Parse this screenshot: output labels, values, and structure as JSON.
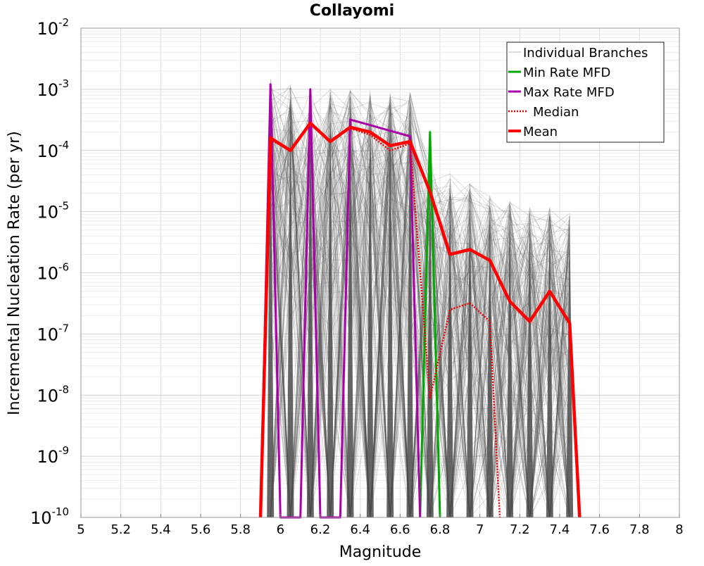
{
  "chart_data": {
    "type": "line",
    "title": "Collayomi",
    "xlabel": "Magnitude",
    "ylabel": "Incremental Nucleation Rate (per yr)",
    "xlim": [
      5,
      8
    ],
    "ylim": [
      1e-10,
      0.01
    ],
    "y_scale": "log",
    "grid": true,
    "legend_position": "top-right",
    "x_ticks": [
      "5",
      "5.2",
      "5.4",
      "5.6",
      "5.8",
      "6",
      "6.2",
      "6.4",
      "6.6",
      "6.8",
      "7",
      "7.2",
      "7.4",
      "7.6",
      "7.8",
      "8"
    ],
    "y_ticks": [
      {
        "base": "10",
        "exp": "-10"
      },
      {
        "base": "10",
        "exp": "-9"
      },
      {
        "base": "10",
        "exp": "-8"
      },
      {
        "base": "10",
        "exp": "-7"
      },
      {
        "base": "10",
        "exp": "-6"
      },
      {
        "base": "10",
        "exp": "-5"
      },
      {
        "base": "10",
        "exp": "-4"
      },
      {
        "base": "10",
        "exp": "-3"
      },
      {
        "base": "10",
        "exp": "-2"
      }
    ],
    "series": [
      {
        "name": "Individual Branches",
        "color": "#b8b8b8",
        "style": "thin",
        "note_visual": "dense bundle of many gray branch curves",
        "x": [
          5.95,
          6.05,
          6.15,
          6.25,
          6.35,
          6.45,
          6.55,
          6.65,
          6.75,
          6.85,
          6.95,
          7.05,
          7.15,
          7.25,
          7.35,
          7.45
        ],
        "band_low": [
          1e-10,
          1e-10,
          1e-10,
          1e-10,
          1e-10,
          1e-10,
          1e-10,
          1e-10,
          1e-10,
          1e-10,
          1e-10,
          1e-10,
          1e-10,
          1e-10,
          1e-10,
          1e-10
        ],
        "band_high": [
          0.0015,
          0.0012,
          0.0012,
          0.001,
          0.001,
          0.001,
          0.0009,
          0.0009,
          8e-05,
          5e-05,
          3e-05,
          2e-05,
          1.5e-05,
          1.2e-05,
          1.2e-05,
          1e-05
        ]
      },
      {
        "name": "Min Rate MFD",
        "color": "#00aa00",
        "style": "solid",
        "x": [
          6.7,
          6.75,
          6.8
        ],
        "values": [
          1e-10,
          0.0002,
          1e-10
        ]
      },
      {
        "name": "Max Rate MFD",
        "color": "#aa00aa",
        "style": "solid",
        "x": [
          5.9,
          5.95,
          6.0,
          6.1,
          6.15,
          6.2,
          6.3,
          6.35,
          6.45,
          6.55,
          6.65,
          6.7
        ],
        "values": [
          1e-10,
          0.0012,
          1e-10,
          1e-10,
          0.001,
          1e-10,
          1e-10,
          0.00032,
          0.00026,
          0.00021,
          0.00017,
          1e-10
        ]
      },
      {
        "name": "Median",
        "color": "#ee0000",
        "style": "dotted",
        "x": [
          5.9,
          5.95,
          6.05,
          6.15,
          6.25,
          6.35,
          6.45,
          6.55,
          6.65,
          6.75,
          6.85,
          6.95,
          7.05,
          7.1
        ],
        "values": [
          1e-10,
          0.00015,
          0.0001,
          0.00027,
          0.00014,
          0.00023,
          0.00018,
          0.0001,
          0.00013,
          9e-09,
          2.5e-07,
          3.2e-07,
          1.6e-07,
          1e-10
        ]
      },
      {
        "name": "Mean",
        "color": "#ff0000",
        "style": "thick",
        "x": [
          5.9,
          5.95,
          6.05,
          6.15,
          6.25,
          6.35,
          6.45,
          6.55,
          6.65,
          6.75,
          6.85,
          6.95,
          7.05,
          7.15,
          7.25,
          7.35,
          7.45,
          7.5
        ],
        "values": [
          1e-10,
          0.00016,
          0.0001,
          0.00028,
          0.00014,
          0.00024,
          0.0002,
          0.00012,
          0.00014,
          2.1e-05,
          2e-06,
          2.4e-06,
          1.6e-06,
          3.4e-07,
          1.6e-07,
          5e-07,
          1.5e-07,
          1e-10
        ]
      }
    ]
  }
}
